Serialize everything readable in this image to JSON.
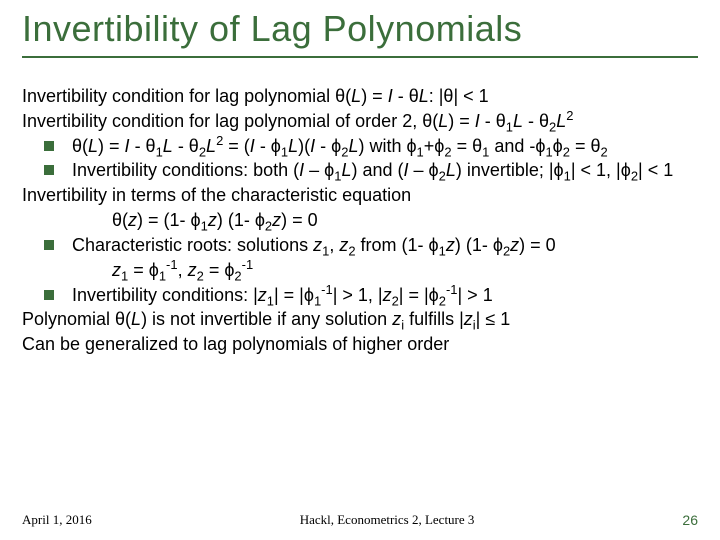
{
  "title": "Invertibility of Lag Polynomials",
  "lines": {
    "l1_a": "Invertibility condition for lag polynomial θ(",
    "l1_b": ") = ",
    "l1_c": " - θ",
    "l1_d": ": |θ| < 1",
    "l2_a": "Invertibility condition for lag polynomial of order 2, θ(",
    "l2_b": ") = ",
    "l2_c": " - θ",
    "l2_d": " - θ",
    "b1_a": "θ(",
    "b1_b": ") = ",
    "b1_c": " - θ",
    "b1_d": " - θ",
    "b1_e": " = (",
    "b1_f": " - ϕ",
    "b1_g": ")(",
    "b1_h": " - ϕ",
    "b1_i": ") with ϕ",
    "b1_j": "+ϕ",
    "b1_k": " = θ",
    "b1_l": " and -ϕ",
    "b1_m": "ϕ",
    "b1_n": " = θ",
    "b2_a": "Invertibility conditions: both (",
    "b2_b": " – ϕ",
    "b2_c": ") and (",
    "b2_d": " – ϕ",
    "b2_e": ") invertible; |ϕ",
    "b2_f": "| < 1, |ϕ",
    "b2_g": "| < 1",
    "l3": "Invertibility in terms of the characteristic equation",
    "eq1_a": "θ(",
    "eq1_b": ") = (1- ϕ",
    "eq1_c": ") (1- ϕ",
    "eq1_d": ") = 0",
    "b3_a": "Characteristic roots: solutions ",
    "b3_b": ", ",
    "b3_c": " from (1- ϕ",
    "b3_d": ") (1- ϕ",
    "b3_e": ") = 0",
    "eq2_a": " = ϕ",
    "eq2_b": ", ",
    "eq2_c": " = ϕ",
    "b4_a": "Invertibility conditions: |",
    "b4_b": "| = |ϕ",
    "b4_c": "| > 1, |",
    "b4_d": "| = |ϕ",
    "b4_e": "| > 1",
    "l4_a": "Polynomial θ(",
    "l4_b": ") is not invertible if any solution ",
    "l4_c": " fulfills |",
    "l4_d": "| ≤ 1",
    "l5": "Can be generalized to lag polynomials of higher order"
  },
  "sym": {
    "L": "L",
    "I": "I",
    "z": "z",
    "L2": "L",
    "z1": "z",
    "z2": "z",
    "zi": "z",
    "s1": "1",
    "s2": "2",
    "si": "i",
    "sup2": "2",
    "supm1": "-1"
  },
  "footer": {
    "date": "April 1, 2016",
    "center": "Hackl, Econometrics 2, Lecture 3",
    "page": "26"
  },
  "colors": {
    "accent": "#3b6e3b",
    "text": "#000000",
    "bg": "#ffffff"
  }
}
